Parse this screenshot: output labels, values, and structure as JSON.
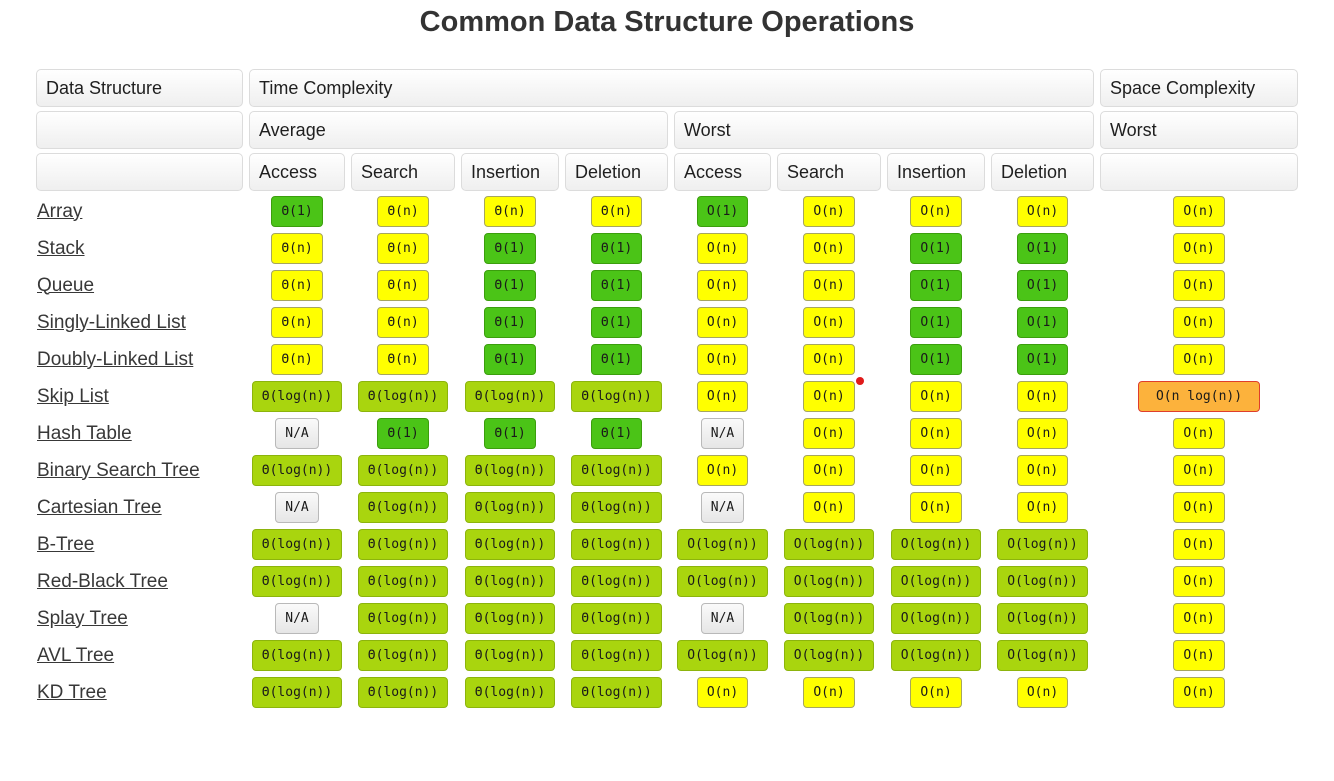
{
  "title": "Common Data Structure Operations",
  "table": {
    "header": {
      "data_structure": "Data Structure",
      "time_complexity": "Time Complexity",
      "space_complexity": "Space Complexity",
      "average": "Average",
      "worst": "Worst",
      "space_worst": "Worst",
      "operations": [
        "Access",
        "Search",
        "Insertion",
        "Deletion"
      ]
    },
    "grade_colors": {
      "excellent": {
        "bg": "#4bc417",
        "border": "#3b9e0d"
      },
      "good": {
        "bg": "#a9d50e",
        "border": "#8cb40c"
      },
      "fair": {
        "bg": "#ffff00",
        "border": "#a6a65e"
      },
      "bad": {
        "bg": "#fcb23c",
        "border": "#df3e2b"
      },
      "na": {
        "bg": "#ececec",
        "border": "#b9b9b9"
      }
    },
    "rows": [
      {
        "name": "Array",
        "cells": [
          {
            "t": "Θ(1)",
            "g": "excellent"
          },
          {
            "t": "Θ(n)",
            "g": "fair"
          },
          {
            "t": "Θ(n)",
            "g": "fair"
          },
          {
            "t": "Θ(n)",
            "g": "fair"
          },
          {
            "t": "O(1)",
            "g": "excellent"
          },
          {
            "t": "O(n)",
            "g": "fair"
          },
          {
            "t": "O(n)",
            "g": "fair"
          },
          {
            "t": "O(n)",
            "g": "fair"
          },
          {
            "t": "O(n)",
            "g": "fair"
          }
        ]
      },
      {
        "name": "Stack",
        "cells": [
          {
            "t": "Θ(n)",
            "g": "fair"
          },
          {
            "t": "Θ(n)",
            "g": "fair"
          },
          {
            "t": "Θ(1)",
            "g": "excellent"
          },
          {
            "t": "Θ(1)",
            "g": "excellent"
          },
          {
            "t": "O(n)",
            "g": "fair"
          },
          {
            "t": "O(n)",
            "g": "fair"
          },
          {
            "t": "O(1)",
            "g": "excellent"
          },
          {
            "t": "O(1)",
            "g": "excellent"
          },
          {
            "t": "O(n)",
            "g": "fair"
          }
        ]
      },
      {
        "name": "Queue",
        "cells": [
          {
            "t": "Θ(n)",
            "g": "fair"
          },
          {
            "t": "Θ(n)",
            "g": "fair"
          },
          {
            "t": "Θ(1)",
            "g": "excellent"
          },
          {
            "t": "Θ(1)",
            "g": "excellent"
          },
          {
            "t": "O(n)",
            "g": "fair"
          },
          {
            "t": "O(n)",
            "g": "fair"
          },
          {
            "t": "O(1)",
            "g": "excellent"
          },
          {
            "t": "O(1)",
            "g": "excellent"
          },
          {
            "t": "O(n)",
            "g": "fair"
          }
        ]
      },
      {
        "name": "Singly-Linked List",
        "cells": [
          {
            "t": "Θ(n)",
            "g": "fair"
          },
          {
            "t": "Θ(n)",
            "g": "fair"
          },
          {
            "t": "Θ(1)",
            "g": "excellent"
          },
          {
            "t": "Θ(1)",
            "g": "excellent"
          },
          {
            "t": "O(n)",
            "g": "fair"
          },
          {
            "t": "O(n)",
            "g": "fair"
          },
          {
            "t": "O(1)",
            "g": "excellent"
          },
          {
            "t": "O(1)",
            "g": "excellent"
          },
          {
            "t": "O(n)",
            "g": "fair"
          }
        ]
      },
      {
        "name": "Doubly-Linked List",
        "cells": [
          {
            "t": "Θ(n)",
            "g": "fair"
          },
          {
            "t": "Θ(n)",
            "g": "fair"
          },
          {
            "t": "Θ(1)",
            "g": "excellent"
          },
          {
            "t": "Θ(1)",
            "g": "excellent"
          },
          {
            "t": "O(n)",
            "g": "fair"
          },
          {
            "t": "O(n)",
            "g": "fair"
          },
          {
            "t": "O(1)",
            "g": "excellent"
          },
          {
            "t": "O(1)",
            "g": "excellent"
          },
          {
            "t": "O(n)",
            "g": "fair"
          }
        ]
      },
      {
        "name": "Skip List",
        "cells": [
          {
            "t": "Θ(log(n))",
            "g": "good"
          },
          {
            "t": "Θ(log(n))",
            "g": "good"
          },
          {
            "t": "Θ(log(n))",
            "g": "good"
          },
          {
            "t": "Θ(log(n))",
            "g": "good"
          },
          {
            "t": "O(n)",
            "g": "fair"
          },
          {
            "t": "O(n)",
            "g": "fair"
          },
          {
            "t": "O(n)",
            "g": "fair"
          },
          {
            "t": "O(n)",
            "g": "fair"
          },
          {
            "t": "O(n log(n))",
            "g": "bad"
          }
        ]
      },
      {
        "name": "Hash Table",
        "cells": [
          {
            "t": "N/A",
            "g": "na"
          },
          {
            "t": "Θ(1)",
            "g": "excellent"
          },
          {
            "t": "Θ(1)",
            "g": "excellent"
          },
          {
            "t": "Θ(1)",
            "g": "excellent"
          },
          {
            "t": "N/A",
            "g": "na"
          },
          {
            "t": "O(n)",
            "g": "fair"
          },
          {
            "t": "O(n)",
            "g": "fair"
          },
          {
            "t": "O(n)",
            "g": "fair"
          },
          {
            "t": "O(n)",
            "g": "fair"
          }
        ]
      },
      {
        "name": "Binary Search Tree",
        "cells": [
          {
            "t": "Θ(log(n))",
            "g": "good"
          },
          {
            "t": "Θ(log(n))",
            "g": "good"
          },
          {
            "t": "Θ(log(n))",
            "g": "good"
          },
          {
            "t": "Θ(log(n))",
            "g": "good"
          },
          {
            "t": "O(n)",
            "g": "fair"
          },
          {
            "t": "O(n)",
            "g": "fair"
          },
          {
            "t": "O(n)",
            "g": "fair"
          },
          {
            "t": "O(n)",
            "g": "fair"
          },
          {
            "t": "O(n)",
            "g": "fair"
          }
        ]
      },
      {
        "name": "Cartesian Tree",
        "cells": [
          {
            "t": "N/A",
            "g": "na"
          },
          {
            "t": "Θ(log(n))",
            "g": "good"
          },
          {
            "t": "Θ(log(n))",
            "g": "good"
          },
          {
            "t": "Θ(log(n))",
            "g": "good"
          },
          {
            "t": "N/A",
            "g": "na"
          },
          {
            "t": "O(n)",
            "g": "fair"
          },
          {
            "t": "O(n)",
            "g": "fair"
          },
          {
            "t": "O(n)",
            "g": "fair"
          },
          {
            "t": "O(n)",
            "g": "fair"
          }
        ]
      },
      {
        "name": "B-Tree",
        "cells": [
          {
            "t": "Θ(log(n))",
            "g": "good"
          },
          {
            "t": "Θ(log(n))",
            "g": "good"
          },
          {
            "t": "Θ(log(n))",
            "g": "good"
          },
          {
            "t": "Θ(log(n))",
            "g": "good"
          },
          {
            "t": "O(log(n))",
            "g": "good"
          },
          {
            "t": "O(log(n))",
            "g": "good"
          },
          {
            "t": "O(log(n))",
            "g": "good"
          },
          {
            "t": "O(log(n))",
            "g": "good"
          },
          {
            "t": "O(n)",
            "g": "fair"
          }
        ]
      },
      {
        "name": "Red-Black Tree",
        "cells": [
          {
            "t": "Θ(log(n))",
            "g": "good"
          },
          {
            "t": "Θ(log(n))",
            "g": "good"
          },
          {
            "t": "Θ(log(n))",
            "g": "good"
          },
          {
            "t": "Θ(log(n))",
            "g": "good"
          },
          {
            "t": "O(log(n))",
            "g": "good"
          },
          {
            "t": "O(log(n))",
            "g": "good"
          },
          {
            "t": "O(log(n))",
            "g": "good"
          },
          {
            "t": "O(log(n))",
            "g": "good"
          },
          {
            "t": "O(n)",
            "g": "fair"
          }
        ]
      },
      {
        "name": "Splay Tree",
        "cells": [
          {
            "t": "N/A",
            "g": "na"
          },
          {
            "t": "Θ(log(n))",
            "g": "good"
          },
          {
            "t": "Θ(log(n))",
            "g": "good"
          },
          {
            "t": "Θ(log(n))",
            "g": "good"
          },
          {
            "t": "N/A",
            "g": "na"
          },
          {
            "t": "O(log(n))",
            "g": "good"
          },
          {
            "t": "O(log(n))",
            "g": "good"
          },
          {
            "t": "O(log(n))",
            "g": "good"
          },
          {
            "t": "O(n)",
            "g": "fair"
          }
        ]
      },
      {
        "name": "AVL Tree",
        "cells": [
          {
            "t": "Θ(log(n))",
            "g": "good"
          },
          {
            "t": "Θ(log(n))",
            "g": "good"
          },
          {
            "t": "Θ(log(n))",
            "g": "good"
          },
          {
            "t": "Θ(log(n))",
            "g": "good"
          },
          {
            "t": "O(log(n))",
            "g": "good"
          },
          {
            "t": "O(log(n))",
            "g": "good"
          },
          {
            "t": "O(log(n))",
            "g": "good"
          },
          {
            "t": "O(log(n))",
            "g": "good"
          },
          {
            "t": "O(n)",
            "g": "fair"
          }
        ]
      },
      {
        "name": "KD Tree",
        "cells": [
          {
            "t": "Θ(log(n))",
            "g": "good"
          },
          {
            "t": "Θ(log(n))",
            "g": "good"
          },
          {
            "t": "Θ(log(n))",
            "g": "good"
          },
          {
            "t": "Θ(log(n))",
            "g": "good"
          },
          {
            "t": "O(n)",
            "g": "fair"
          },
          {
            "t": "O(n)",
            "g": "fair"
          },
          {
            "t": "O(n)",
            "g": "fair"
          },
          {
            "t": "O(n)",
            "g": "fair"
          },
          {
            "t": "O(n)",
            "g": "fair"
          }
        ]
      }
    ]
  },
  "annotations": {
    "cursor_dot_color": "#e01a1a"
  }
}
